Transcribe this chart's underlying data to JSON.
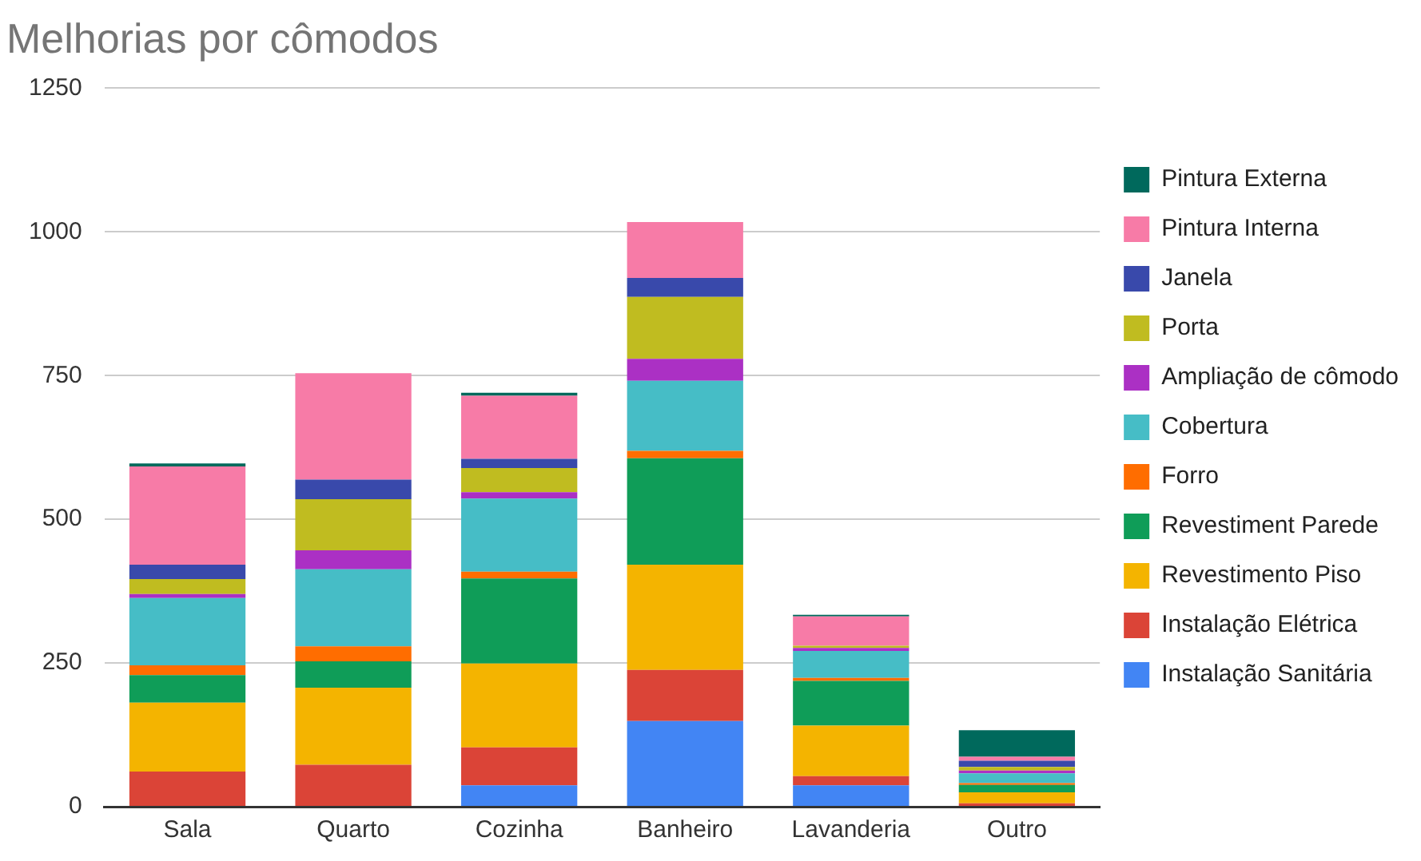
{
  "chart_data": {
    "type": "bar",
    "title": "Melhorias por cômodos",
    "stacked": true,
    "grid": "y",
    "legend": "right",
    "categories": [
      "Sala",
      "Quarto",
      "Cozinha",
      "Banheiro",
      "Lavanderia",
      "Outro"
    ],
    "ylim": [
      0,
      1250
    ],
    "yticks": [
      0,
      250,
      500,
      750,
      1000,
      1250
    ],
    "series": [
      {
        "name": "Instalação Sanitária",
        "color": "#4285f4",
        "values": [
          0,
          0,
          37,
          149,
          37,
          null
        ]
      },
      {
        "name": "Instalação Elétrica",
        "color": "#db4437",
        "values": [
          61,
          73,
          66,
          89,
          16,
          6
        ]
      },
      {
        "name": "Revestimento Piso",
        "color": "#f4b400",
        "values": [
          120,
          134,
          146,
          183,
          88,
          19
        ]
      },
      {
        "name": "Revestiment Parede",
        "color": "#0f9d58",
        "values": [
          48,
          46,
          148,
          185,
          78,
          13
        ]
      },
      {
        "name": "Forro",
        "color": "#ff6d00",
        "values": [
          17,
          26,
          12,
          13,
          5,
          3
        ]
      },
      {
        "name": "Cobertura",
        "color": "#46bdc6",
        "values": [
          117,
          134,
          127,
          122,
          47,
          17
        ]
      },
      {
        "name": "Ampliação de cômodo",
        "color": "#ab30c4",
        "values": [
          7,
          33,
          11,
          38,
          5,
          5
        ]
      },
      {
        "name": "Porta",
        "color": "#c0bc20",
        "values": [
          26,
          89,
          42,
          108,
          4,
          6
        ]
      },
      {
        "name": "Janela",
        "color": "#3949ab",
        "values": [
          25,
          34,
          16,
          33,
          0,
          11
        ]
      },
      {
        "name": "Pintura Interna",
        "color": "#f77ba7",
        "values": [
          171,
          185,
          110,
          97,
          51,
          7
        ]
      },
      {
        "name": "Pintura Externa",
        "color": "#00695c",
        "values": [
          5,
          0,
          5,
          0,
          3,
          46
        ]
      }
    ]
  }
}
